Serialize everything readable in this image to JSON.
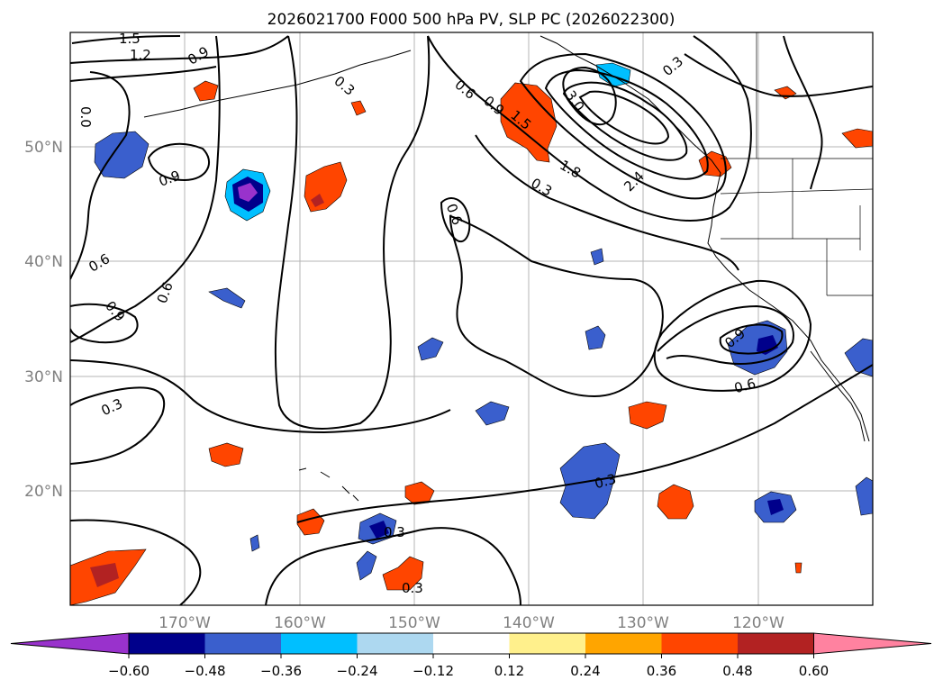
{
  "title": "2026021700 F000 500 hPa PV, SLP PC (2026022300)",
  "lat_labels": [
    "50°N",
    "40°N",
    "30°N",
    "20°N"
  ],
  "lon_labels": [
    "170°W",
    "160°W",
    "150°W",
    "140°W",
    "130°W",
    "120°W"
  ],
  "contour_labels": [
    "1.5",
    "1.2",
    "0.9",
    "0.3",
    "0.6",
    "0.9",
    "1.5",
    "3.0",
    "1.8",
    "2.4",
    "0.3",
    "0.3",
    "0.6",
    "0.9",
    "0.6",
    "0.6",
    "0.9",
    "0.3",
    "0.9",
    "0.6",
    "0.3",
    "0.3",
    "0.3",
    "0.0"
  ],
  "colorbar": {
    "ticks": [
      "−0.60",
      "−0.48",
      "−0.36",
      "−0.24",
      "−0.12",
      "0.12",
      "0.24",
      "0.36",
      "0.48",
      "0.60"
    ],
    "colors": [
      "#9932cc",
      "#00008b",
      "#3a5fcd",
      "#00bfff",
      "#add8f0",
      "#ffffff",
      "#fff08c",
      "#ffa500",
      "#ff4500",
      "#b22222",
      "#ff82a0"
    ]
  }
}
